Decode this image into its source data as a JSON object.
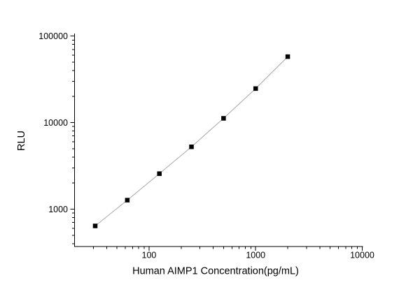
{
  "chart_data": {
    "type": "scatter",
    "title": "",
    "xlabel": "Human AIMP1 Concentration(pg/mL)",
    "ylabel": "RLU",
    "x_scale": "log",
    "y_scale": "log",
    "x": [
      31.25,
      62.5,
      125,
      250,
      500,
      1000,
      2000
    ],
    "y": [
      640,
      1270,
      2570,
      5250,
      11200,
      24700,
      57800
    ],
    "x_axis": {
      "min": 20,
      "max": 10000,
      "major_ticks": [
        100,
        1000,
        10000
      ],
      "tick_labels": [
        "100",
        "1000",
        "10000"
      ]
    },
    "y_axis": {
      "min": 370,
      "max": 103000,
      "major_ticks": [
        1000,
        10000,
        100000
      ],
      "tick_labels": [
        "1000",
        "10000",
        "100000"
      ]
    },
    "marker": {
      "shape": "square",
      "color": "#000000",
      "size": 6.5
    },
    "line": {
      "color": "#a8a8a8",
      "width": 1
    },
    "grid": false,
    "legend": "none",
    "background_color": "#ffffff",
    "axis_color": "#000000"
  }
}
